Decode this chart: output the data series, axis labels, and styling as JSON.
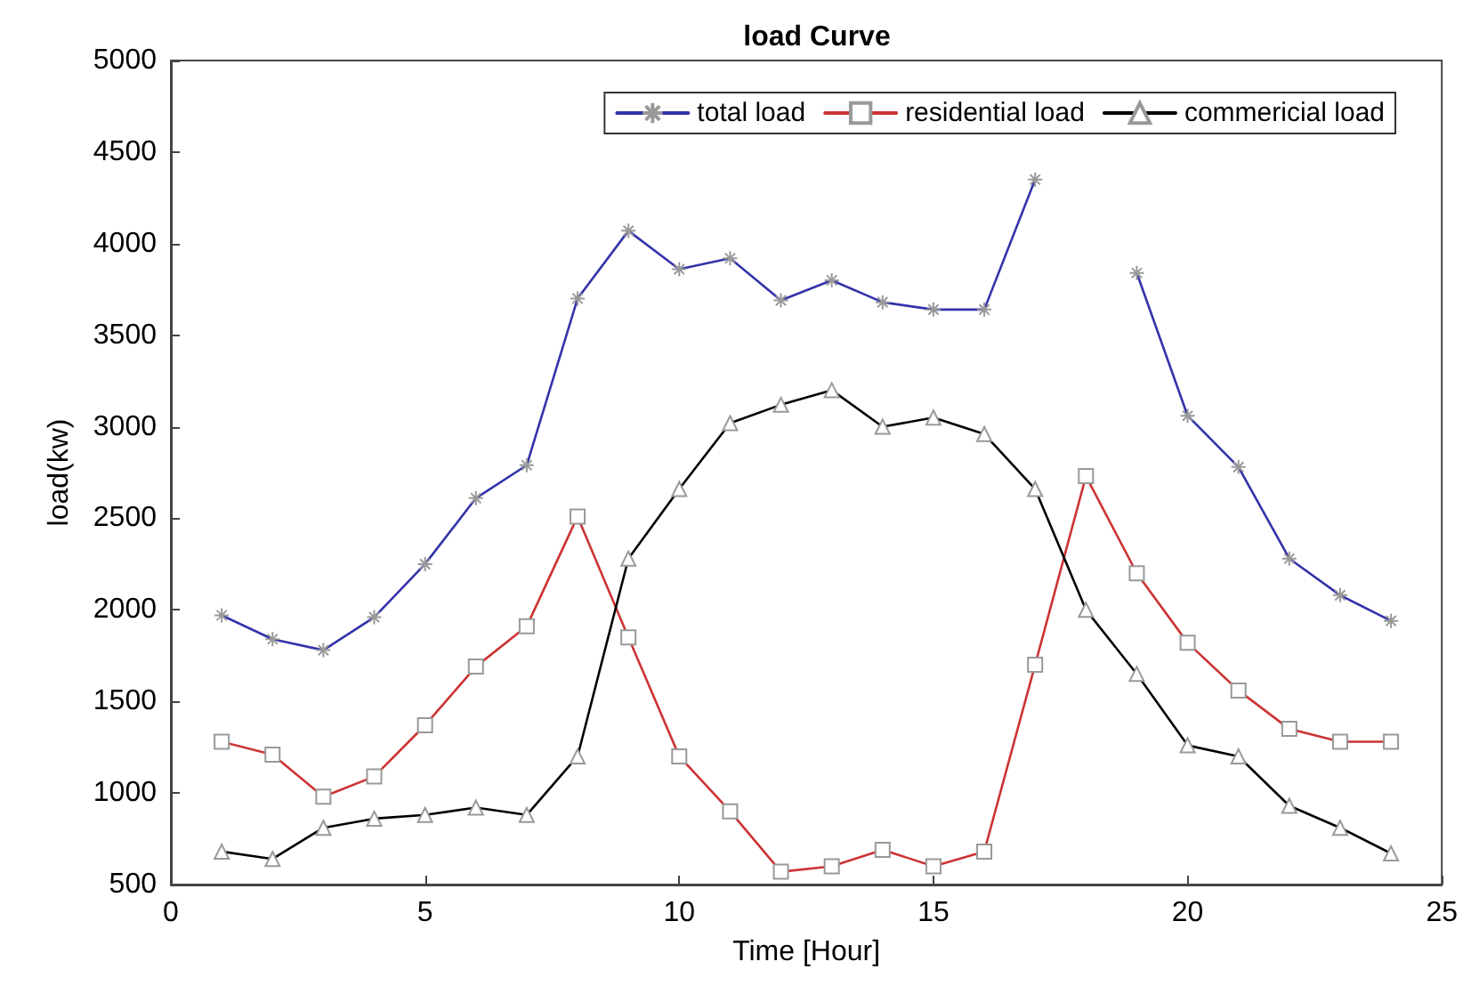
{
  "chart_data": {
    "type": "line",
    "title": "load Curve",
    "xlabel": "Time [Hour]",
    "ylabel": "load(kw)",
    "x": [
      1,
      2,
      3,
      4,
      5,
      6,
      7,
      8,
      9,
      10,
      11,
      12,
      13,
      14,
      15,
      16,
      17,
      18,
      19,
      20,
      21,
      22,
      23,
      24
    ],
    "series": [
      {
        "name": "total load",
        "color": "#3333aa",
        "marker": "cross",
        "values": [
          1970,
          1840,
          1780,
          1960,
          2250,
          2610,
          2790,
          3700,
          4070,
          3860,
          3920,
          3690,
          3800,
          3680,
          3640,
          3640,
          4350,
          null,
          3840,
          3060,
          2780,
          2280,
          2080,
          1940
        ]
      },
      {
        "name": "residential load",
        "color": "#cc3333",
        "marker": "square",
        "values": [
          1280,
          1210,
          980,
          1090,
          1370,
          1690,
          1910,
          2510,
          1850,
          1200,
          900,
          570,
          600,
          690,
          600,
          680,
          1700,
          2730,
          2200,
          1820,
          1560,
          1350,
          1280,
          1280
        ]
      },
      {
        "name": "commericial load",
        "color": "#000000",
        "marker": "triangle",
        "values": [
          680,
          640,
          810,
          860,
          880,
          920,
          880,
          1200,
          2280,
          2660,
          3020,
          3120,
          3200,
          3000,
          3050,
          2960,
          2660,
          2000,
          1650,
          1260,
          1200,
          930,
          810,
          670
        ]
      }
    ],
    "xlim": [
      0,
      25
    ],
    "xticks": [
      0,
      5,
      10,
      15,
      20,
      25
    ],
    "ylim": [
      500,
      5000
    ],
    "yticks": [
      500,
      1000,
      1500,
      2000,
      2500,
      3000,
      3500,
      4000,
      4500,
      5000
    ],
    "grid": false,
    "legend": "top right",
    "line_style": "solid"
  }
}
